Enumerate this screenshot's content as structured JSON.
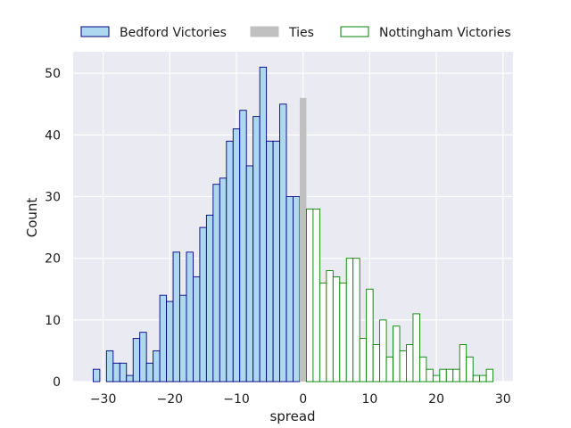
{
  "chart_data": {
    "type": "bar",
    "subtype": "histogram",
    "xlabel": "spread",
    "ylabel": "Count",
    "xlim": [
      -34.5,
      31.5
    ],
    "ylim": [
      0,
      53.5
    ],
    "xticks": [
      -30,
      -20,
      -10,
      0,
      10,
      20,
      30
    ],
    "xtick_labels": [
      "−30",
      "−20",
      "−10",
      "0",
      "10",
      "20",
      "30"
    ],
    "yticks": [
      0,
      10,
      20,
      30,
      40,
      50
    ],
    "ytick_labels": [
      "0",
      "10",
      "20",
      "30",
      "40",
      "50"
    ],
    "grid": true,
    "legend_position": "top",
    "series": [
      {
        "name": "Bedford Victories",
        "face_color": "#add8f0",
        "edge_color": "#000080",
        "x": [
          -31,
          -30,
          -29,
          -28,
          -27,
          -26,
          -25,
          -24,
          -23,
          -22,
          -21,
          -20,
          -19,
          -18,
          -17,
          -16,
          -15,
          -14,
          -13,
          -12,
          -11,
          -10,
          -9,
          -8,
          -7,
          -6,
          -5,
          -4,
          -3,
          -2,
          -1
        ],
        "values": [
          2,
          0,
          5,
          3,
          3,
          1,
          7,
          8,
          3,
          5,
          14,
          13,
          21,
          14,
          21,
          17,
          25,
          27,
          32,
          33,
          39,
          41,
          44,
          35,
          43,
          51,
          39,
          39,
          45,
          30,
          30
        ]
      },
      {
        "name": "Ties",
        "face_color": "#c0c0c0",
        "edge_color": "#c0c0c0",
        "x": [
          0
        ],
        "values": [
          46
        ]
      },
      {
        "name": "Nottingham Victories",
        "face_color": "#ffffff",
        "edge_color": "#008000",
        "x": [
          1,
          2,
          3,
          4,
          5,
          6,
          7,
          8,
          9,
          10,
          11,
          12,
          13,
          14,
          15,
          16,
          17,
          18,
          19,
          20,
          21,
          22,
          23,
          24,
          25,
          26,
          27,
          28
        ],
        "values": [
          28,
          28,
          16,
          18,
          17,
          16,
          20,
          20,
          7,
          15,
          6,
          10,
          4,
          9,
          5,
          6,
          11,
          4,
          2,
          1,
          2,
          2,
          2,
          6,
          4,
          1,
          1,
          2
        ]
      }
    ]
  }
}
